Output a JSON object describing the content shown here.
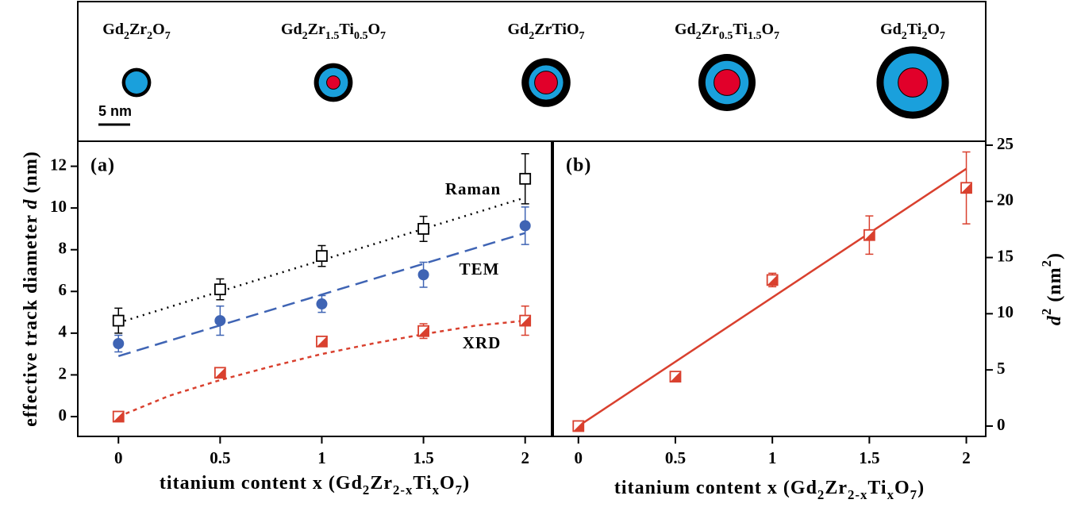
{
  "top_panel": {
    "compounds": [
      [
        "Gd",
        "2",
        "Zr",
        "2",
        "O",
        "7"
      ],
      [
        "Gd",
        "2",
        "Zr",
        "1.5",
        "Ti",
        "0.5",
        "O",
        "7"
      ],
      [
        "Gd",
        "2",
        "ZrTiO",
        "7"
      ],
      [
        "Gd",
        "2",
        "Zr",
        "0.5",
        "Ti",
        "1.5",
        "O",
        "7"
      ],
      [
        "Gd",
        "2",
        "Ti",
        "2",
        "O",
        "7"
      ]
    ],
    "scale_bar": "5 nm"
  },
  "chart_data": [
    {
      "type": "scatter",
      "panel_label": "(a)",
      "xlabel": [
        "titanium content x (Gd",
        "2",
        "Zr",
        "2-x",
        "Ti",
        "x",
        "O",
        "7",
        ")"
      ],
      "ylabel": [
        "effective track diameter ",
        "d",
        " (nm)"
      ],
      "xlim": [
        -0.2,
        2.13
      ],
      "ylim": [
        -0.95,
        13.2
      ],
      "xticks": [
        0,
        0.5,
        1,
        1.5,
        2
      ],
      "yticks": [
        0,
        2,
        4,
        6,
        8,
        10,
        12
      ],
      "x": [
        0,
        0.5,
        1,
        1.5,
        2
      ],
      "series": [
        {
          "name": "Raman",
          "color": "#000000",
          "marker": "open-square",
          "values": [
            4.6,
            6.1,
            7.7,
            9.0,
            11.4
          ],
          "errors": [
            0.6,
            0.5,
            0.5,
            0.6,
            1.2
          ]
        },
        {
          "name": "TEM",
          "color": "#3f64b4",
          "marker": "circle",
          "values": [
            3.5,
            4.6,
            5.4,
            6.8,
            9.15
          ],
          "errors": [
            0.4,
            0.7,
            0.4,
            0.6,
            0.9
          ]
        },
        {
          "name": "XRD",
          "color": "#d9402e",
          "marker": "half-square",
          "values": [
            0,
            2.1,
            3.6,
            4.1,
            4.6
          ],
          "errors": [
            null,
            null,
            null,
            0.35,
            0.7
          ]
        }
      ],
      "fits": [
        {
          "color": "#000000",
          "dash": "2,6",
          "x": [
            0,
            2
          ],
          "values": [
            4.5,
            10.5
          ]
        },
        {
          "color": "#3f64b4",
          "dash": "16,8",
          "x": [
            0,
            2
          ],
          "values": [
            2.9,
            8.8
          ]
        },
        {
          "color": "#d9402e",
          "dash": "5,5",
          "x": [
            0,
            0.25,
            0.5,
            0.75,
            1,
            1.25,
            1.5,
            1.75,
            2
          ],
          "values": [
            0,
            1.0,
            1.75,
            2.4,
            3.0,
            3.5,
            3.95,
            4.35,
            4.6
          ]
        }
      ]
    },
    {
      "type": "scatter",
      "panel_label": "(b)",
      "xlabel": [
        "titanium content x (Gd",
        "2",
        "Zr",
        "2-x",
        "Ti",
        "x",
        "O",
        "7",
        ")"
      ],
      "ylabel": [
        "d",
        "2",
        " (nm",
        "2",
        ")"
      ],
      "xlim": [
        -0.13,
        2.1
      ],
      "ylim": [
        -0.92,
        25.35
      ],
      "xticks": [
        0,
        0.5,
        1,
        1.5,
        2
      ],
      "yticks": [
        0,
        5,
        10,
        15,
        20,
        25
      ],
      "x": [
        0,
        0.5,
        1,
        1.5,
        2
      ],
      "series": [
        {
          "color": "#d9402e",
          "marker": "half-square",
          "values": [
            0,
            4.4,
            13.0,
            17.0,
            21.2
          ],
          "errors": [
            null,
            null,
            0.6,
            1.7,
            3.2
          ]
        }
      ],
      "fits": [
        {
          "color": "#d9402e",
          "dash": "none",
          "x": [
            0,
            2
          ],
          "values": [
            0,
            22.9
          ]
        }
      ]
    }
  ]
}
